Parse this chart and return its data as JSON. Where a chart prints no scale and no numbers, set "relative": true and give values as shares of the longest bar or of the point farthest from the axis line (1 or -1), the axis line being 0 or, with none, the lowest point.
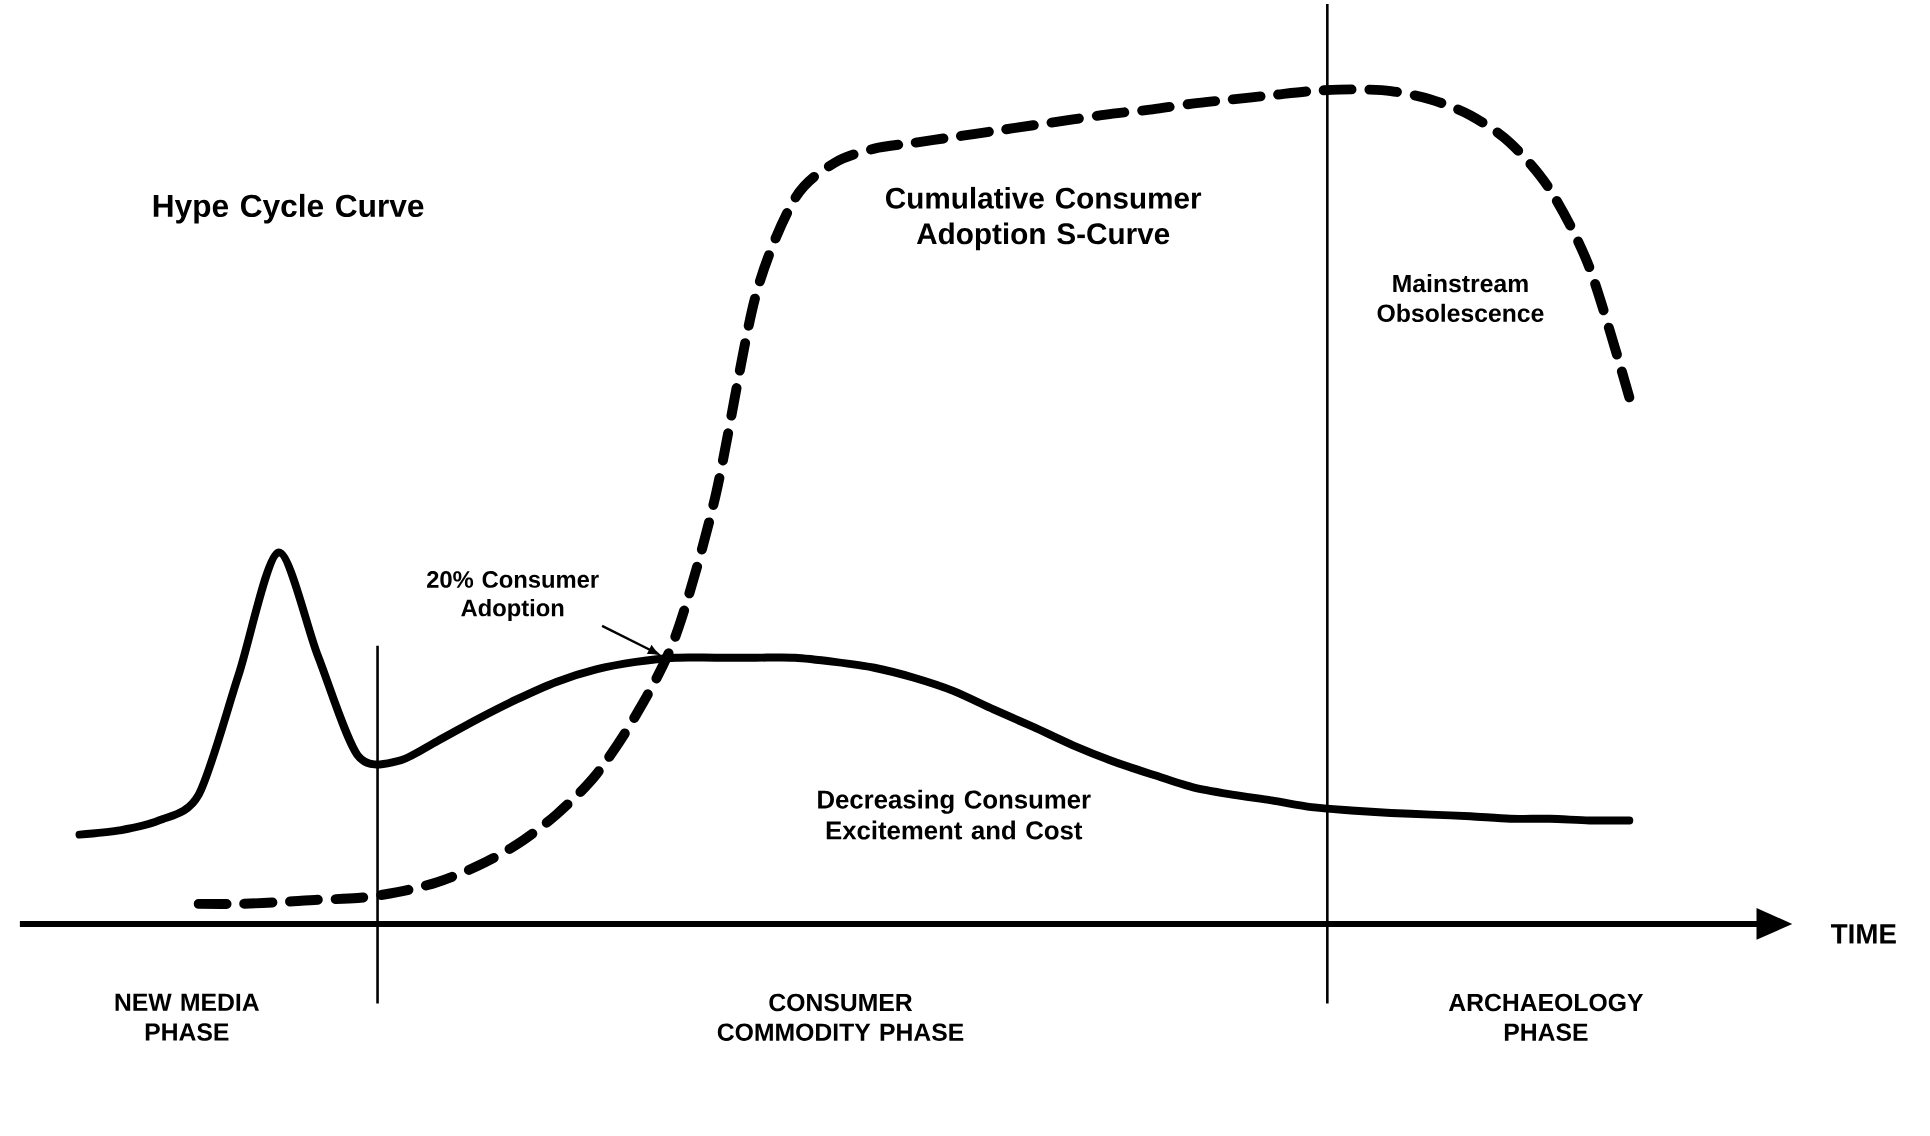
{
  "chart_data": {
    "type": "line",
    "relative": true,
    "marker": "none",
    "categories": [
      null,
      null,
      null,
      null,
      null,
      null,
      null,
      null,
      null,
      null,
      null,
      null,
      null,
      null,
      null,
      null,
      null,
      null,
      null,
      null,
      null,
      null,
      null,
      null,
      null,
      null,
      null,
      null,
      null,
      null,
      null,
      null,
      null,
      null,
      null,
      null,
      null,
      null,
      null,
      null
    ],
    "series": [
      {
        "color": "#000000",
        "line_style": "solid",
        "values": [
          0.107,
          0.112,
          0.124,
          0.155,
          0.298,
          0.445,
          0.321,
          0.202,
          0.195,
          0.219,
          0.245,
          0.269,
          0.29,
          0.305,
          0.314,
          0.319,
          0.319,
          0.319,
          0.319,
          0.314,
          0.307,
          0.295,
          0.279,
          0.257,
          0.236,
          0.214,
          0.195,
          0.179,
          0.164,
          0.155,
          0.148,
          0.14,
          0.136,
          0.133,
          0.131,
          0.129,
          0.126,
          0.126,
          0.124,
          0.124
        ]
      },
      {
        "color": "#000000",
        "line_style": "dashed",
        "values": [
          null,
          null,
          null,
          0.024,
          0.024,
          0.026,
          0.029,
          0.031,
          0.038,
          0.05,
          0.069,
          0.095,
          0.131,
          0.179,
          0.25,
          0.345,
          0.512,
          0.75,
          0.869,
          0.912,
          0.929,
          0.936,
          0.943,
          0.95,
          0.957,
          0.964,
          0.971,
          0.976,
          0.983,
          0.988,
          0.993,
          0.998,
          1,
          0.998,
          0.988,
          0.969,
          0.936,
          0.88,
          0.786,
          0.631
        ]
      }
    ],
    "annotations": [
      "Hype Cycle Curve",
      "20% Consumer Adoption",
      "Cumulative Consumer Adoption S-Curve",
      "Mainstream Obsolescence",
      "Decreasing Consumer Excitement and Cost",
      "NEW MEDIA PHASE",
      "CONSUMER COMMODITY PHASE",
      "ARCHAEOLOGY PHASE",
      "TIME"
    ]
  }
}
